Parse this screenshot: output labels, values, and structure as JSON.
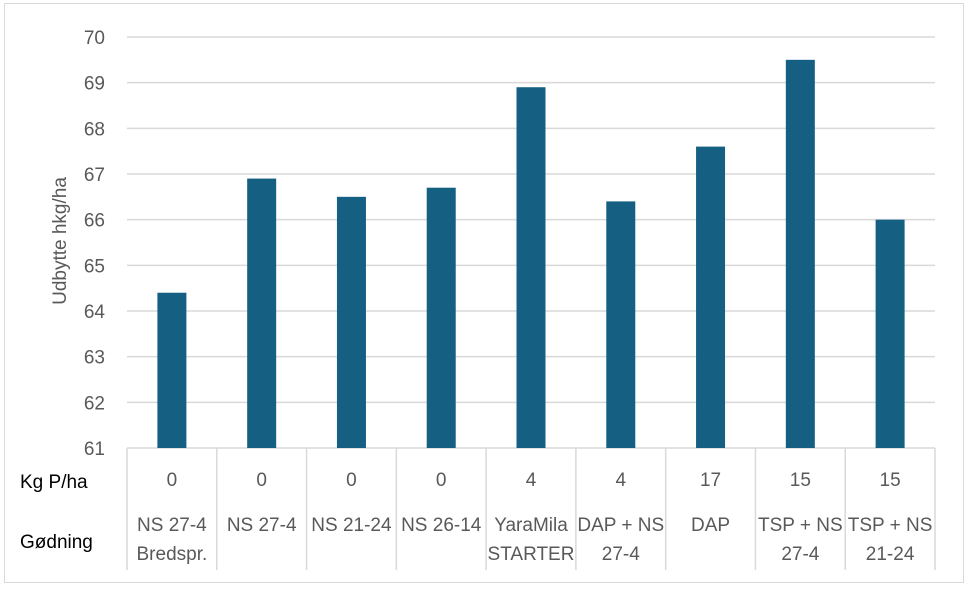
{
  "chart_data": {
    "type": "bar",
    "ylabel": "Udbytte hkg/ha",
    "ylim": [
      61,
      70
    ],
    "yticks": [
      61,
      62,
      63,
      64,
      65,
      66,
      67,
      68,
      69,
      70
    ],
    "grid": true,
    "bar_color": "#156082",
    "categories": [
      [
        "NS 27-4",
        "Bredspr."
      ],
      [
        "NS 27-4"
      ],
      [
        "NS 21-24"
      ],
      [
        "NS 26-14"
      ],
      [
        "YaraMila",
        "STARTER"
      ],
      [
        "DAP + NS",
        "27-4"
      ],
      [
        "DAP"
      ],
      [
        "TSP + NS",
        "27-4"
      ],
      [
        "TSP + NS",
        "21-24"
      ]
    ],
    "values": [
      64.4,
      66.9,
      66.5,
      66.7,
      68.9,
      66.4,
      67.6,
      69.5,
      66.0
    ],
    "table": {
      "rows": [
        {
          "label": "Kg P/ha",
          "values": [
            "0",
            "0",
            "0",
            "0",
            "4",
            "4",
            "17",
            "15",
            "15"
          ]
        },
        {
          "label": "Gødning"
        }
      ]
    }
  }
}
